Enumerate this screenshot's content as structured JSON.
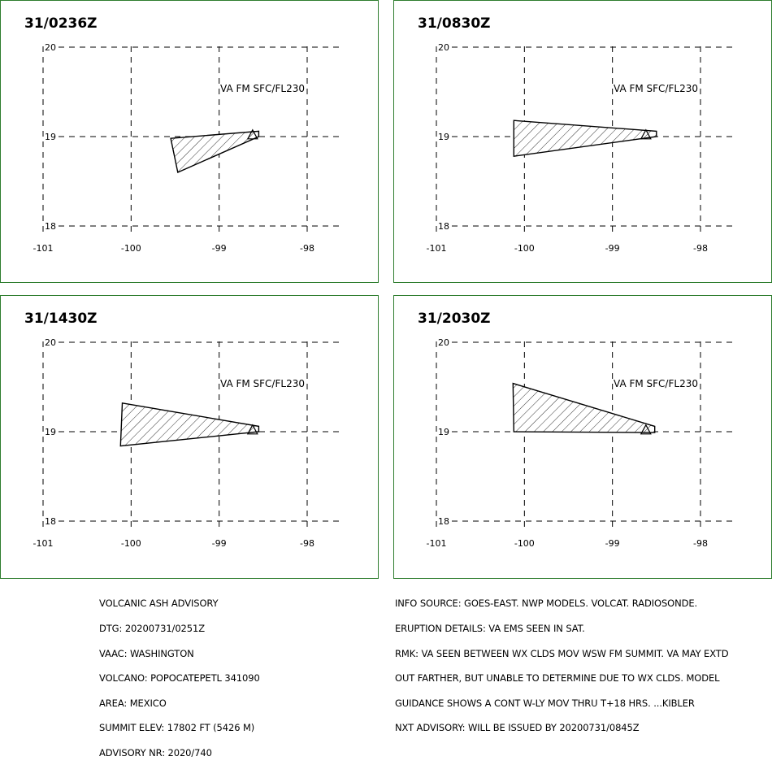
{
  "advisory_left": [
    "VOLCANIC ASH ADVISORY",
    "DTG: 20200731/0251Z",
    "VAAC: WASHINGTON",
    "VOLCANO: POPOCATEPETL 341090",
    "AREA: MEXICO",
    "SUMMIT ELEV: 17802 FT (5426 M)",
    "ADVISORY NR: 2020/740"
  ],
  "advisory_right": [
    "INFO SOURCE: GOES-EAST. NWP MODELS. VOLCAT. RADIOSONDE.",
    "ERUPTION DETAILS: VA EMS SEEN IN SAT.",
    "RMK: VA SEEN BETWEEN WX CLDS MOV WSW FM SUMMIT. VA MAY EXTD",
    "OUT FARTHER, BUT UNABLE TO DETERMINE DUE TO WX CLDS. MODEL",
    "GUIDANCE SHOWS A CONT W-LY MOV THRU T+18 HRS. ...KIBLER",
    "NXT ADVISORY: WILL BE ISSUED BY 20200731/0845Z"
  ],
  "volcano": {
    "lon": -98.62,
    "lat": 19.02
  },
  "chart_data": [
    {
      "type": "map",
      "title": "31/0236Z",
      "layer_label": "VA FM SFC/FL230",
      "x_ticks": [
        -101,
        -100,
        -99,
        -98
      ],
      "y_ticks": [
        20,
        19,
        18
      ],
      "xlim": [
        -101.05,
        -97.65
      ],
      "ylim": [
        17.75,
        20.35
      ],
      "polygon": [
        [
          -99.55,
          18.98
        ],
        [
          -98.55,
          19.06
        ],
        [
          -98.55,
          19.0
        ],
        [
          -99.47,
          18.6
        ]
      ]
    },
    {
      "type": "map",
      "title": "31/0830Z",
      "layer_label": "VA FM SFC/FL230",
      "x_ticks": [
        -101,
        -100,
        -99,
        -98
      ],
      "y_ticks": [
        20,
        19,
        18
      ],
      "xlim": [
        -101.05,
        -97.65
      ],
      "ylim": [
        17.75,
        20.35
      ],
      "polygon": [
        [
          -100.12,
          19.18
        ],
        [
          -98.5,
          19.06
        ],
        [
          -98.5,
          19.0
        ],
        [
          -100.12,
          18.78
        ]
      ]
    },
    {
      "type": "map",
      "title": "31/1430Z",
      "layer_label": "VA FM SFC/FL230",
      "x_ticks": [
        -101,
        -100,
        -99,
        -98
      ],
      "y_ticks": [
        20,
        19,
        18
      ],
      "xlim": [
        -101.05,
        -97.65
      ],
      "ylim": [
        17.75,
        20.35
      ],
      "polygon": [
        [
          -100.1,
          19.32
        ],
        [
          -98.55,
          19.06
        ],
        [
          -98.55,
          19.0
        ],
        [
          -100.12,
          18.84
        ]
      ]
    },
    {
      "type": "map",
      "title": "31/2030Z",
      "layer_label": "VA FM SFC/FL230",
      "x_ticks": [
        -101,
        -100,
        -99,
        -98
      ],
      "y_ticks": [
        20,
        19,
        18
      ],
      "xlim": [
        -101.05,
        -97.65
      ],
      "ylim": [
        17.75,
        20.35
      ],
      "polygon": [
        [
          -100.13,
          19.54
        ],
        [
          -98.52,
          19.06
        ],
        [
          -98.52,
          18.99
        ],
        [
          -100.12,
          19.0
        ]
      ]
    }
  ]
}
